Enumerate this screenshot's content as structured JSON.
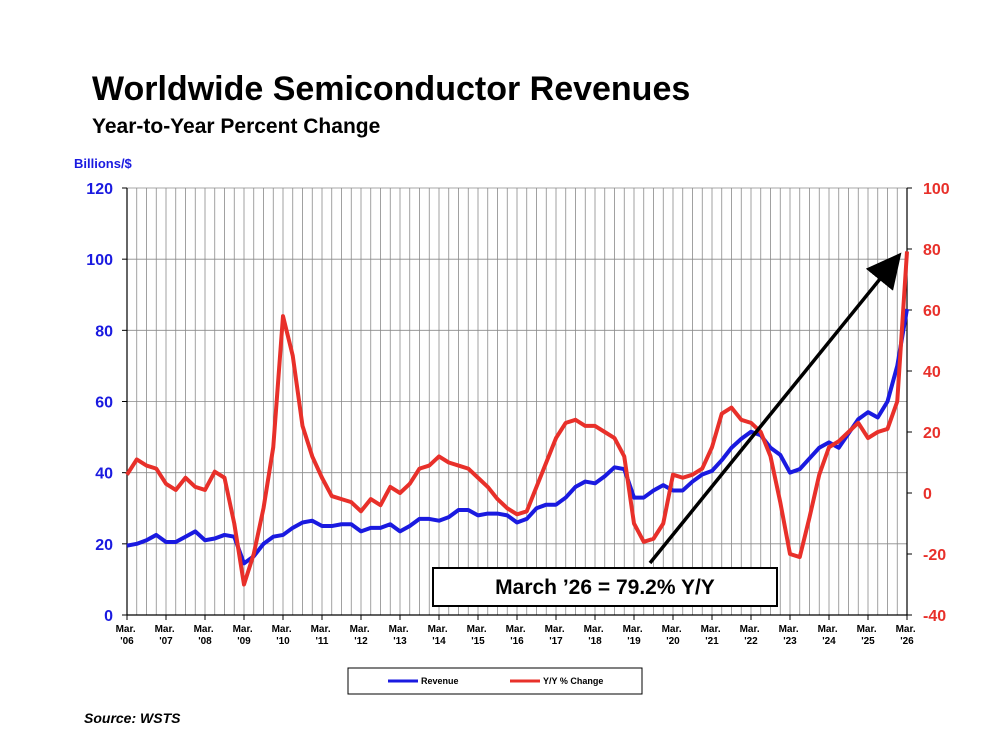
{
  "chart_data": {
    "type": "line",
    "title": "Worldwide Semiconductor Revenues",
    "subtitle": "Year-to-Year Percent Change",
    "y_label": "Billions/$",
    "source": "Source: WSTS",
    "annotation": "March ’26 = 79.2% Y/Y",
    "xlim": [
      2006,
      2026
    ],
    "xticks": [
      {
        "value": 2006,
        "label": "Mar. '06"
      },
      {
        "value": 2007,
        "label": "Mar. '07"
      },
      {
        "value": 2008,
        "label": "Mar. '08"
      },
      {
        "value": 2009,
        "label": "Mar. '09"
      },
      {
        "value": 2010,
        "label": "Mar. '10"
      },
      {
        "value": 2011,
        "label": "Mar. '11"
      },
      {
        "value": 2012,
        "label": "Mar. '12"
      },
      {
        "value": 2013,
        "label": "Mar. '13"
      },
      {
        "value": 2014,
        "label": "Mar. '14"
      },
      {
        "value": 2015,
        "label": "Mar. '15"
      },
      {
        "value": 2016,
        "label": "Mar. '16"
      },
      {
        "value": 2017,
        "label": "Mar. '17"
      },
      {
        "value": 2018,
        "label": "Mar. '18"
      },
      {
        "value": 2019,
        "label": "Mar. '19"
      },
      {
        "value": 2020,
        "label": "Mar. '20"
      },
      {
        "value": 2021,
        "label": "Mar. '21"
      },
      {
        "value": 2022,
        "label": "Mar. '22"
      },
      {
        "value": 2023,
        "label": "Mar. '23"
      },
      {
        "value": 2024,
        "label": "Mar. '24"
      },
      {
        "value": 2025,
        "label": "Mar. '25"
      },
      {
        "value": 2026,
        "label": "Mar. '26"
      }
    ],
    "ylim": [
      0,
      120
    ],
    "yticks": [
      0,
      20,
      40,
      60,
      80,
      100,
      120
    ],
    "y2lim": [
      -40,
      100
    ],
    "y2ticks": [
      -40,
      -20,
      0,
      20,
      40,
      60,
      80,
      100
    ],
    "grid": true,
    "legend": "bottom",
    "x": [
      2006,
      2006.25,
      2006.5,
      2006.75,
      2007,
      2007.25,
      2007.5,
      2007.75,
      2008,
      2008.25,
      2008.5,
      2008.75,
      2009,
      2009.25,
      2009.5,
      2009.75,
      2010,
      2010.25,
      2010.5,
      2010.75,
      2011,
      2011.25,
      2011.5,
      2011.75,
      2012,
      2012.25,
      2012.5,
      2012.75,
      2013,
      2013.25,
      2013.5,
      2013.75,
      2014,
      2014.25,
      2014.5,
      2014.75,
      2015,
      2015.25,
      2015.5,
      2015.75,
      2016,
      2016.25,
      2016.5,
      2016.75,
      2017,
      2017.25,
      2017.5,
      2017.75,
      2018,
      2018.25,
      2018.5,
      2018.75,
      2019,
      2019.25,
      2019.5,
      2019.75,
      2020,
      2020.25,
      2020.5,
      2020.75,
      2021,
      2021.25,
      2021.5,
      2021.75,
      2022,
      2022.25,
      2022.5,
      2022.75,
      2023,
      2023.25,
      2023.5,
      2023.75,
      2024,
      2024.25,
      2024.5,
      2024.75,
      2025,
      2025.25,
      2025.5,
      2025.75,
      2026
    ],
    "series": [
      {
        "name": "Revenue",
        "color": "#1a1ae0",
        "axis": "y",
        "values": [
          19.5,
          20,
          21,
          22.5,
          20.5,
          20.5,
          22,
          23.5,
          21,
          21.5,
          22.5,
          22,
          14.5,
          16.5,
          20,
          22,
          22.5,
          24.5,
          26,
          26.5,
          25,
          25,
          25.5,
          25.5,
          23.5,
          24.5,
          24.5,
          25.5,
          23.5,
          25,
          27,
          27,
          26.5,
          27.5,
          29.5,
          29.5,
          28,
          28.5,
          28.5,
          28,
          26,
          27,
          30,
          31,
          31,
          33,
          36,
          37.5,
          37,
          39,
          41.5,
          41,
          33,
          33,
          35,
          36.5,
          35,
          35,
          37.5,
          39.5,
          40.5,
          43.5,
          47,
          49.5,
          51.5,
          50.5,
          47,
          45,
          40,
          41,
          44,
          47,
          48.5,
          47,
          51,
          55,
          57,
          55.5,
          60,
          70,
          86
        ]
      },
      {
        "name": "Y/Y % Change",
        "color": "#e8302a",
        "axis": "y2",
        "values": [
          6,
          11,
          9,
          8,
          3,
          1,
          5,
          2,
          1,
          7,
          5,
          -10,
          -30,
          -20,
          -5,
          15,
          58,
          45,
          22,
          12,
          5,
          -1,
          -2,
          -3,
          -6,
          -2,
          -4,
          2,
          0,
          3,
          8,
          9,
          12,
          10,
          9,
          8,
          5,
          2,
          -2,
          -5,
          -7,
          -6,
          2,
          10,
          18,
          23,
          24,
          22,
          22,
          20,
          18,
          12,
          -10,
          -16,
          -15,
          -10,
          6,
          5,
          6,
          8,
          15,
          26,
          28,
          24,
          23,
          20,
          12,
          -3,
          -20,
          -21,
          -8,
          6,
          15,
          17,
          20,
          23,
          18,
          20,
          21,
          30,
          79.2
        ]
      }
    ]
  }
}
